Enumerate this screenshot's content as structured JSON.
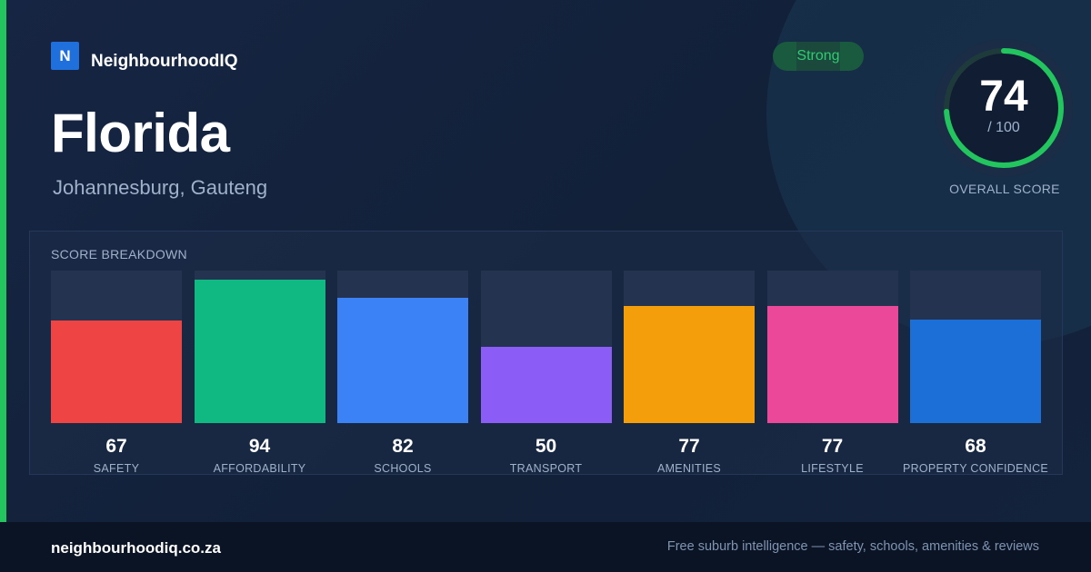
{
  "brand": {
    "logo_letter": "N",
    "name": "NeighbourhoodIQ"
  },
  "suburb": {
    "name": "Florida",
    "location": "Johannesburg, Gauteng"
  },
  "rating_badge": "Strong",
  "overall": {
    "value": "74",
    "max_label": "/ 100",
    "label": "OVERALL SCORE",
    "fraction": 0.74,
    "ring_color": "#22c55e"
  },
  "breakdown": {
    "title": "SCORE BREAKDOWN",
    "items": [
      {
        "value": "67",
        "label": "SAFETY",
        "color": "#ef4444"
      },
      {
        "value": "94",
        "label": "AFFORDABILITY",
        "color": "#10b981"
      },
      {
        "value": "82",
        "label": "SCHOOLS",
        "color": "#3b82f6"
      },
      {
        "value": "50",
        "label": "TRANSPORT",
        "color": "#8b5cf6"
      },
      {
        "value": "77",
        "label": "AMENITIES",
        "color": "#f59e0b"
      },
      {
        "value": "77",
        "label": "LIFESTYLE",
        "color": "#ec4899"
      },
      {
        "value": "68",
        "label": "PROPERTY CONFIDENCE",
        "color": "#1d6fd8"
      }
    ]
  },
  "footer": {
    "url": "neighbourhoodiq.co.za",
    "tagline": "Free suburb intelligence — safety, schools, amenities & reviews"
  },
  "colors": {
    "accent": "#22c55e",
    "background": "#13203a",
    "footer": "#0b1424"
  }
}
